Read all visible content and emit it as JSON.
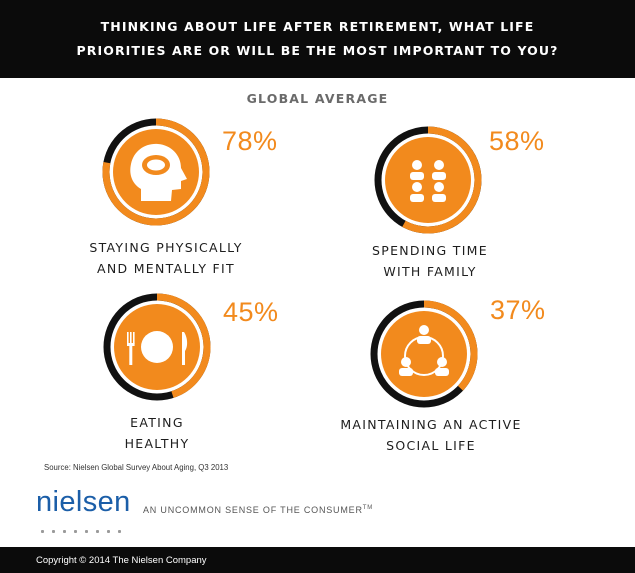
{
  "header": {
    "line1": "THINKING ABOUT LIFE AFTER RETIREMENT, WHAT LIFE",
    "line2": "PRIORITIES ARE OR WILL BE THE MOST IMPORTANT TO YOU?"
  },
  "chart_data": {
    "type": "pie",
    "subtitle": "GLOBAL AVERAGE",
    "items": [
      {
        "label_line1": "STAYING PHYSICALLY",
        "label_line2": "AND MENTALLY FIT",
        "value": 78,
        "value_label": "78%",
        "icon": "head-brain-icon"
      },
      {
        "label_line1": "SPENDING TIME",
        "label_line2": "WITH FAMILY",
        "value": 58,
        "value_label": "58%",
        "icon": "family-icon"
      },
      {
        "label_line1": "EATING",
        "label_line2": "HEALTHY",
        "value": 45,
        "value_label": "45%",
        "icon": "fork-plate-knife-icon"
      },
      {
        "label_line1": "MAINTAINING AN ACTIVE",
        "label_line2": "SOCIAL LIFE",
        "value": 37,
        "value_label": "37%",
        "icon": "social-circle-icon"
      }
    ]
  },
  "source": "Source: Nielsen Global Survey About Aging, Q3 2013",
  "logo": {
    "text": "nielsen"
  },
  "tagline": {
    "text": "AN UNCOMMON SENSE OF THE CONSUMER",
    "tm": "TM"
  },
  "footer": {
    "copyright": "Copyright © 2014 The Nielsen Company"
  },
  "colors": {
    "accent": "#f28a1d",
    "ring_background": "#111111",
    "header_background": "#0b0b0b"
  }
}
